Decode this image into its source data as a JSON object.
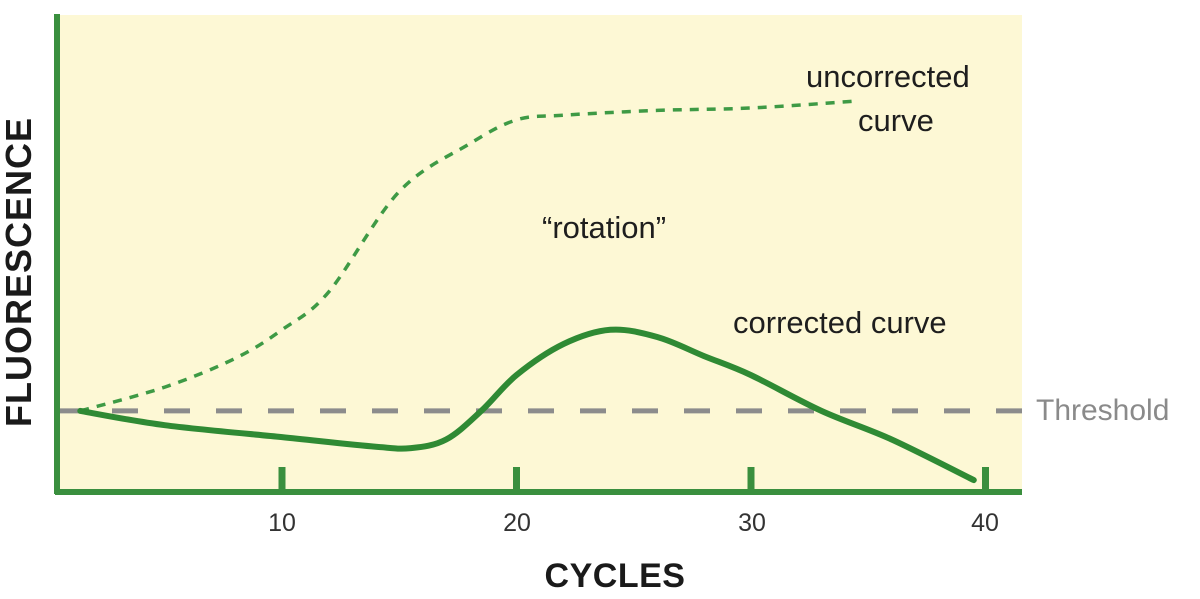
{
  "chart_data": {
    "type": "line",
    "title": "",
    "xlabel": "CYCLES",
    "ylabel": "FLUORESCENCE",
    "xticks": [
      10,
      20,
      30,
      40
    ],
    "xlim": [
      0,
      41
    ],
    "ylim": [
      0,
      100
    ],
    "grid": false,
    "legend": null,
    "threshold": {
      "label": "Threshold",
      "value": 17,
      "style": "dashed",
      "color": "#8c8c8c"
    },
    "series": [
      {
        "name": "uncorrected curve",
        "style": "dashed",
        "color": "#3e9a45",
        "x": [
          1.4,
          5,
          8,
          10,
          12,
          15,
          18,
          20,
          22,
          26,
          30,
          34.6
        ],
        "y": [
          17,
          22,
          28,
          34,
          42,
          63,
          73,
          78,
          79,
          80,
          80.5,
          82
        ]
      },
      {
        "name": "corrected curve",
        "style": "solid",
        "color": "#2f8a34",
        "x": [
          1.4,
          5,
          10,
          14,
          15.5,
          17,
          18.5,
          20,
          22,
          24,
          26,
          28,
          30,
          33,
          36,
          39.5
        ],
        "y": [
          17,
          14,
          11.5,
          9.5,
          9.2,
          11,
          17,
          24.5,
          31,
          34,
          32.5,
          28.5,
          24.5,
          17,
          11,
          2.5
        ]
      }
    ],
    "annotations": [
      {
        "text": "uncorrected",
        "x": 34.5,
        "y": 87
      },
      {
        "text": "curve",
        "x": 34.5,
        "y": 79
      },
      {
        "text": "“rotation”",
        "x": 23,
        "y": 55
      },
      {
        "text": "corrected curve",
        "x": 34.5,
        "y": 35
      }
    ]
  },
  "labels": {
    "ylabel": "FLUORESCENCE",
    "xlabel": "CYCLES",
    "ticks": [
      "10",
      "20",
      "30",
      "40"
    ],
    "threshold": "Threshold",
    "uncorrected_line1": "uncorrected",
    "uncorrected_line2": "curve",
    "rotation": "“rotation”",
    "corrected": "corrected curve"
  },
  "colors": {
    "plot_background": "#fdf8d5",
    "axis": "#3a8f3e",
    "corrected_curve": "#2f8a34",
    "uncorrected_curve": "#3e9a45",
    "threshold": "#8c8c8c",
    "text": "#1e1e1e"
  }
}
